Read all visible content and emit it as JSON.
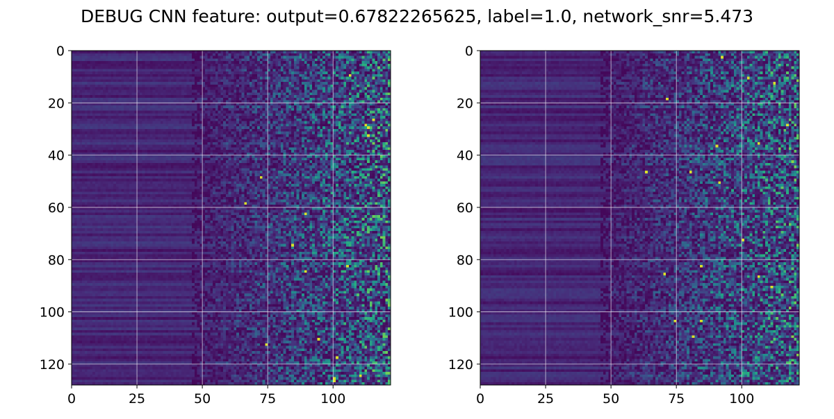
{
  "figure": {
    "title": "DEBUG CNN feature: output=0.67822265625, label=1.0, network_snr=5.473"
  },
  "colors": {
    "background": "#ffffff",
    "grid": "#ffffff",
    "axis": "#000000",
    "colormap": "viridis"
  },
  "chart_data": [
    {
      "type": "heatmap",
      "title": "",
      "xlabel": "",
      "ylabel": "",
      "rows": 128,
      "cols": 122,
      "xlim": [
        0,
        122
      ],
      "ylim": [
        128,
        0
      ],
      "xticks": [
        0,
        25,
        50,
        75,
        100
      ],
      "yticks": [
        0,
        20,
        40,
        60,
        80,
        100,
        120
      ],
      "grid": true,
      "colormap": "viridis"
    },
    {
      "type": "heatmap",
      "title": "",
      "xlabel": "",
      "ylabel": "",
      "rows": 128,
      "cols": 122,
      "xlim": [
        0,
        122
      ],
      "ylim": [
        128,
        0
      ],
      "xticks": [
        0,
        25,
        50,
        75,
        100
      ],
      "yticks": [
        0,
        20,
        40,
        60,
        80,
        100,
        120
      ],
      "grid": true,
      "colormap": "viridis"
    }
  ]
}
